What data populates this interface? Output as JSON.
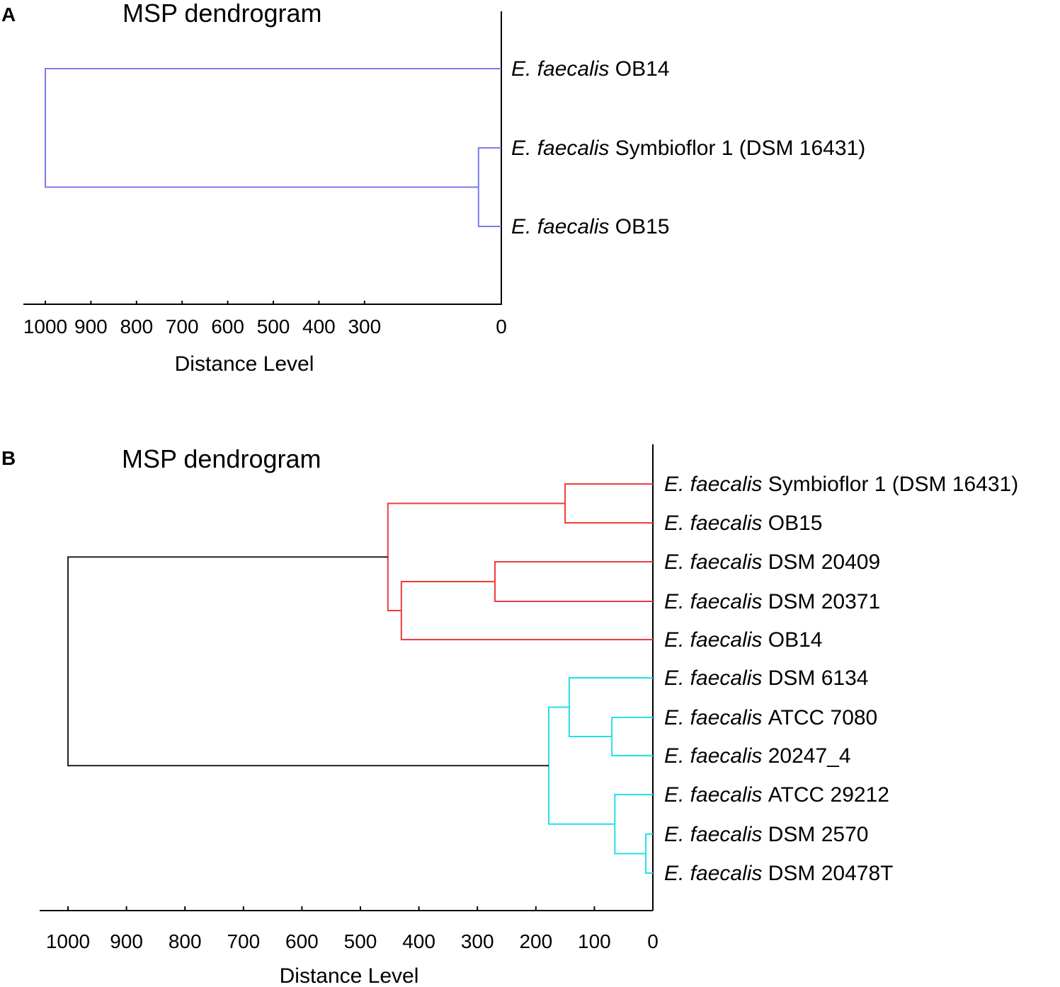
{
  "chart_data": [
    {
      "panel": "A",
      "type": "dendrogram",
      "title": "MSP dendrogram",
      "xlabel": "Distance Level",
      "xlim": [
        1040,
        0
      ],
      "xticks": [
        1000,
        900,
        800,
        700,
        600,
        500,
        400,
        300,
        0
      ],
      "color": "#7b7bf0",
      "leaves": [
        {
          "genus": "E. faecalis",
          "strain": "OB14"
        },
        {
          "genus": "E. faecalis",
          "strain": "Symbioflor 1 (DSM 16431)"
        },
        {
          "genus": "E. faecalis",
          "strain": "OB15"
        }
      ],
      "merges": [
        {
          "id": "a1",
          "a": "leaf:1",
          "b": "leaf:2",
          "height": 50,
          "color": "#7b7bf0"
        },
        {
          "id": "a2",
          "a": "leaf:0",
          "b": "node:a1",
          "height": 1000,
          "color": "#7b7bf0"
        }
      ]
    },
    {
      "panel": "B",
      "type": "dendrogram",
      "title": "MSP dendrogram",
      "xlabel": "Distance Level",
      "xlim": [
        1045,
        0
      ],
      "xticks": [
        1000,
        900,
        800,
        700,
        600,
        500,
        400,
        300,
        200,
        100,
        0
      ],
      "leaves": [
        {
          "genus": "E. faecalis",
          "strain": "Symbioflor 1 (DSM 16431)"
        },
        {
          "genus": "E. faecalis",
          "strain": "OB15"
        },
        {
          "genus": "E. faecalis",
          "strain": "DSM 20409"
        },
        {
          "genus": "E. faecalis",
          "strain": "DSM 20371"
        },
        {
          "genus": "E. faecalis",
          "strain": "OB14"
        },
        {
          "genus": "E. faecalis",
          "strain": "DSM 6134"
        },
        {
          "genus": "E. faecalis",
          "strain": "ATCC 7080"
        },
        {
          "genus": "E. faecalis",
          "strain": "20247_4"
        },
        {
          "genus": "E. faecalis",
          "strain": "ATCC 29212"
        },
        {
          "genus": "E. faecalis",
          "strain": "DSM 2570"
        },
        {
          "genus": "E. faecalis",
          "strain": "DSM 20478T"
        }
      ],
      "merges": [
        {
          "id": "r1",
          "a": "leaf:0",
          "b": "leaf:1",
          "height": 150,
          "color": "#ee3b3b"
        },
        {
          "id": "r2",
          "a": "leaf:2",
          "b": "leaf:3",
          "height": 270,
          "color": "#ee3b3b"
        },
        {
          "id": "r3",
          "a": "node:r2",
          "b": "leaf:4",
          "height": 430,
          "color": "#ee3b3b"
        },
        {
          "id": "r4",
          "a": "node:r1",
          "b": "node:r3",
          "height": 453,
          "color": "#ee3b3b"
        },
        {
          "id": "c1",
          "a": "leaf:6",
          "b": "leaf:7",
          "height": 70,
          "color": "#22e0e8"
        },
        {
          "id": "c2",
          "a": "leaf:5",
          "b": "node:c1",
          "height": 143,
          "color": "#22e0e8"
        },
        {
          "id": "c3",
          "a": "leaf:9",
          "b": "leaf:10",
          "height": 12,
          "color": "#22e0e8"
        },
        {
          "id": "c4",
          "a": "leaf:8",
          "b": "node:c3",
          "height": 65,
          "color": "#22e0e8"
        },
        {
          "id": "c5",
          "a": "node:c2",
          "b": "node:c4",
          "height": 178,
          "color": "#22e0e8"
        },
        {
          "id": "root",
          "a": "node:r4",
          "b": "node:c5",
          "height": 1000,
          "color": "#222222"
        }
      ]
    }
  ]
}
